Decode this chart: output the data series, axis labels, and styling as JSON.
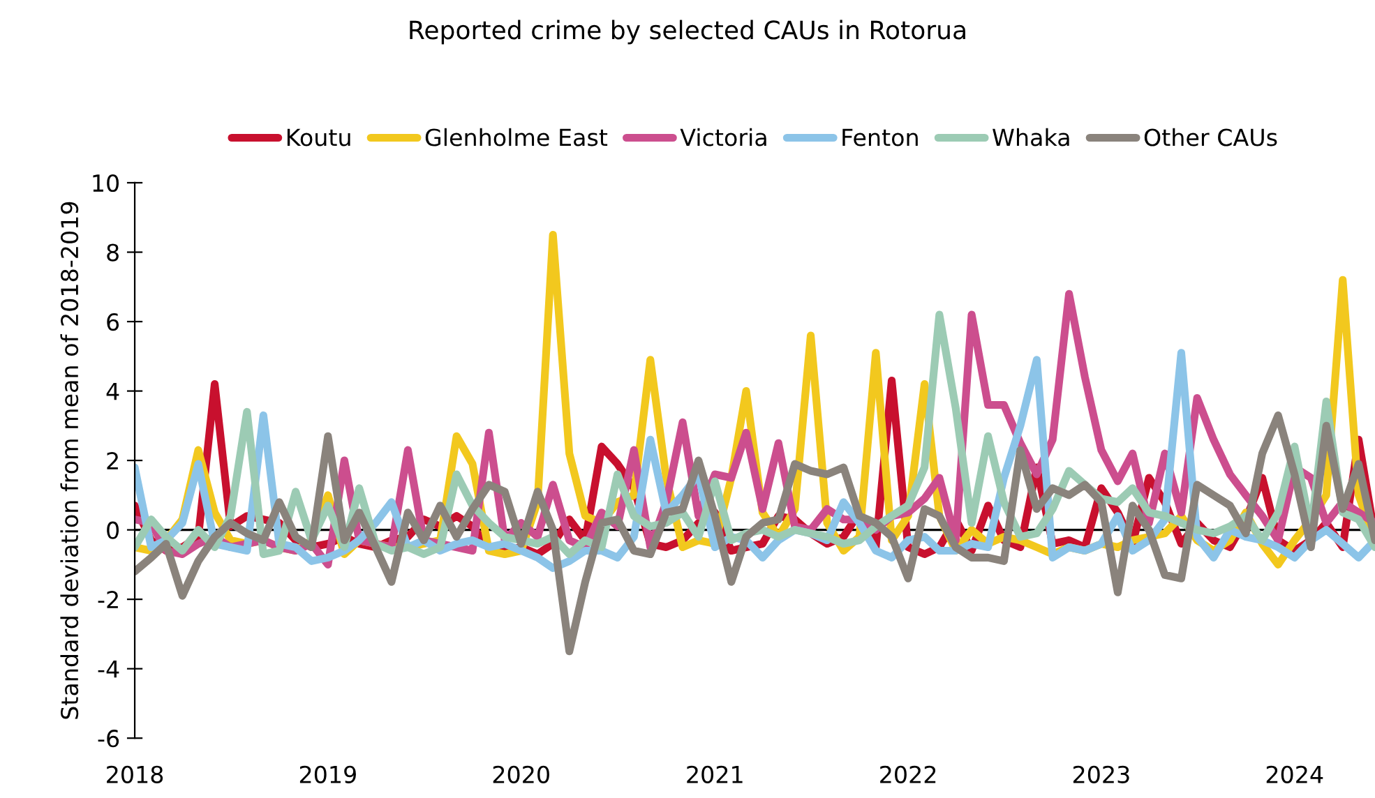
{
  "chart_data": {
    "type": "line",
    "title": "Reported crime by selected CAUs in Rotorua",
    "ylabel": "Standard deviation from mean of 2018-2019",
    "x": [
      "2018-01",
      "2018-02",
      "2018-03",
      "2018-04",
      "2018-05",
      "2018-06",
      "2018-07",
      "2018-08",
      "2018-09",
      "2018-10",
      "2018-11",
      "2018-12",
      "2019-01",
      "2019-02",
      "2019-03",
      "2019-04",
      "2019-05",
      "2019-06",
      "2019-07",
      "2019-08",
      "2019-09",
      "2019-10",
      "2019-11",
      "2019-12",
      "2020-01",
      "2020-02",
      "2020-03",
      "2020-04",
      "2020-05",
      "2020-06",
      "2020-07",
      "2020-08",
      "2020-09",
      "2020-10",
      "2020-11",
      "2020-12",
      "2021-01",
      "2021-02",
      "2021-03",
      "2021-04",
      "2021-05",
      "2021-06",
      "2021-07",
      "2021-08",
      "2021-09",
      "2021-10",
      "2021-11",
      "2021-12",
      "2022-01",
      "2022-02",
      "2022-03",
      "2022-04",
      "2022-05",
      "2022-06",
      "2022-07",
      "2022-08",
      "2022-09",
      "2022-10",
      "2022-11",
      "2022-12",
      "2023-01",
      "2023-02",
      "2023-03",
      "2023-04",
      "2023-05",
      "2023-06",
      "2023-07",
      "2023-08",
      "2023-09",
      "2023-10",
      "2023-11",
      "2023-12",
      "2024-01",
      "2024-02",
      "2024-03",
      "2024-04",
      "2024-05",
      "2024-06"
    ],
    "series": [
      {
        "name": "Koutu",
        "color": "#c8102e",
        "values": [
          0.7,
          -0.3,
          -0.6,
          -0.5,
          -0.2,
          4.2,
          0.1,
          0.4,
          0.3,
          0.2,
          -0.3,
          -0.5,
          -0.4,
          -0.2,
          -0.4,
          -0.5,
          -0.3,
          -0.2,
          0.3,
          0.1,
          0.4,
          0.1,
          -0.5,
          -0.6,
          -0.5,
          -0.7,
          -0.4,
          0.3,
          -0.3,
          2.4,
          1.9,
          1.2,
          -0.4,
          -0.5,
          -0.3,
          0.2,
          0.5,
          -0.6,
          -0.5,
          -0.4,
          0.4,
          0.3,
          -0.1,
          -0.4,
          -0.2,
          0.5,
          -0.5,
          4.3,
          -0.5,
          -0.7,
          -0.5,
          0.3,
          -0.6,
          0.7,
          -0.3,
          -0.5,
          1.8,
          -0.4,
          -0.3,
          -0.5,
          1.2,
          0.5,
          -0.4,
          1.5,
          0.8,
          -0.4,
          0.2,
          -0.3,
          -0.5,
          0.3,
          1.5,
          -0.3,
          -0.6,
          -0.3,
          0.2,
          -0.5,
          2.6,
          -0.2
        ]
      },
      {
        "name": "Glenholme East",
        "color": "#f2c81e",
        "values": [
          -0.5,
          -0.6,
          -0.3,
          0.3,
          2.3,
          0.5,
          -0.3,
          -0.4,
          -0.3,
          -0.5,
          -0.6,
          -0.3,
          1.0,
          -0.7,
          -0.3,
          -0.4,
          -0.5,
          -0.5,
          -0.4,
          -0.3,
          2.7,
          1.9,
          -0.6,
          -0.7,
          -0.6,
          0.8,
          8.5,
          2.2,
          0.4,
          0.2,
          0.8,
          1.0,
          4.9,
          1.5,
          -0.5,
          -0.3,
          -0.4,
          1.5,
          4.0,
          0.5,
          -0.2,
          0.6,
          5.6,
          0.2,
          -0.6,
          -0.2,
          5.1,
          -0.3,
          0.4,
          4.2,
          0.4,
          -0.6,
          0.0,
          -0.4,
          -0.2,
          -0.3,
          -0.5,
          -0.7,
          -0.5,
          -0.6,
          -0.4,
          -0.5,
          -0.3,
          -0.2,
          -0.1,
          0.4,
          -0.3,
          -0.6,
          -0.3,
          0.5,
          -0.4,
          -1.0,
          -0.3,
          0.3,
          1.0,
          7.2,
          1.0,
          -0.3
        ]
      },
      {
        "name": "Victoria",
        "color": "#cc4e8e",
        "values": [
          0.3,
          0.2,
          -0.6,
          -0.7,
          -0.4,
          -0.2,
          -0.5,
          -0.4,
          -0.3,
          -0.5,
          -0.6,
          -0.4,
          -1.0,
          2.0,
          -0.3,
          -0.4,
          -0.5,
          2.3,
          -0.3,
          -0.4,
          -0.5,
          -0.6,
          2.8,
          -0.3,
          0.2,
          -0.2,
          1.3,
          -0.3,
          -0.5,
          0.5,
          0.1,
          2.3,
          -0.5,
          0.8,
          3.1,
          0.4,
          1.6,
          1.5,
          2.8,
          0.6,
          2.5,
          0.1,
          0.0,
          0.6,
          0.3,
          0.3,
          0.0,
          0.4,
          0.5,
          0.9,
          1.5,
          -0.3,
          6.2,
          3.6,
          3.6,
          2.5,
          1.6,
          2.6,
          6.8,
          4.4,
          2.3,
          1.4,
          2.2,
          0.2,
          2.2,
          0.5,
          3.8,
          2.6,
          1.6,
          1.0,
          0.4,
          -0.3,
          1.8,
          1.5,
          0.2,
          0.8,
          0.5,
          0.2
        ]
      },
      {
        "name": "Fenton",
        "color": "#8cc4e8",
        "values": [
          1.8,
          -0.5,
          -0.3,
          0.2,
          1.9,
          -0.4,
          -0.5,
          -0.6,
          3.3,
          -0.4,
          -0.5,
          -0.9,
          -0.8,
          -0.6,
          -0.3,
          0.2,
          0.8,
          -0.5,
          -0.3,
          -0.6,
          -0.4,
          -0.3,
          -0.5,
          -0.4,
          -0.6,
          -0.8,
          -1.1,
          -0.9,
          -0.6,
          -0.6,
          -0.8,
          -0.2,
          2.6,
          0.5,
          1.0,
          1.6,
          -0.5,
          -0.2,
          -0.3,
          -0.8,
          -0.3,
          0.0,
          -0.1,
          -0.3,
          0.8,
          0.2,
          -0.6,
          -0.8,
          -0.3,
          -0.2,
          -0.6,
          -0.6,
          -0.4,
          -0.5,
          1.5,
          3.0,
          4.9,
          -0.8,
          -0.5,
          -0.6,
          -0.4,
          0.4,
          -0.6,
          -0.3,
          0.3,
          5.1,
          -0.2,
          -0.8,
          0.0,
          -0.2,
          -0.3,
          -0.5,
          -0.8,
          -0.3,
          0.0,
          -0.4,
          -0.8,
          -0.3
        ]
      },
      {
        "name": "Whaka",
        "color": "#9ccbb4",
        "values": [
          -0.5,
          0.3,
          -0.2,
          -0.6,
          0.0,
          -0.5,
          0.4,
          3.4,
          -0.7,
          -0.6,
          1.1,
          -0.3,
          0.7,
          -0.5,
          1.2,
          -0.4,
          -0.6,
          -0.5,
          -0.7,
          -0.5,
          1.6,
          0.7,
          0.2,
          -0.2,
          -0.3,
          -0.4,
          -0.2,
          -0.7,
          -0.3,
          -0.5,
          1.6,
          0.4,
          0.1,
          0.2,
          0.5,
          -0.2,
          1.4,
          -0.3,
          -0.1,
          0.0,
          -0.2,
          0.0,
          -0.1,
          -0.2,
          -0.4,
          -0.3,
          0.1,
          0.4,
          0.7,
          1.8,
          6.2,
          3.5,
          0.2,
          2.7,
          0.8,
          -0.2,
          -0.1,
          0.6,
          1.7,
          1.3,
          0.9,
          0.8,
          1.2,
          0.5,
          0.4,
          0.2,
          0.0,
          -0.1,
          0.1,
          0.4,
          -0.3,
          0.5,
          2.4,
          0.0,
          3.7,
          0.5,
          0.3,
          -0.5
        ]
      },
      {
        "name": "Other CAUs",
        "color": "#8a837c",
        "values": [
          -1.2,
          -0.8,
          -0.4,
          -1.9,
          -0.9,
          -0.2,
          0.2,
          -0.1,
          -0.3,
          0.8,
          -0.2,
          -0.5,
          2.7,
          -0.3,
          0.5,
          -0.5,
          -1.5,
          0.5,
          -0.3,
          0.7,
          -0.2,
          0.6,
          1.3,
          1.1,
          -0.4,
          1.1,
          0.0,
          -3.5,
          -1.5,
          0.2,
          0.3,
          -0.6,
          -0.7,
          0.5,
          0.6,
          2.0,
          0.4,
          -1.5,
          -0.2,
          0.2,
          0.3,
          1.9,
          1.7,
          1.6,
          1.8,
          0.4,
          0.2,
          -0.2,
          -1.4,
          0.6,
          0.4,
          -0.5,
          -0.8,
          -0.8,
          -0.9,
          2.3,
          0.6,
          1.2,
          1.0,
          1.3,
          0.8,
          -1.8,
          0.7,
          0.0,
          -1.3,
          -1.4,
          1.3,
          1.0,
          0.7,
          -0.1,
          2.2,
          3.3,
          1.6,
          -0.5,
          3.0,
          0.6,
          1.9,
          -0.3
        ]
      }
    ],
    "xlim": [
      "2018-01",
      "2024-06"
    ],
    "xticks": [
      "2018",
      "2019",
      "2020",
      "2021",
      "2022",
      "2023",
      "2024"
    ],
    "ylim": [
      -6,
      10
    ],
    "yticks": [
      -6,
      -4,
      -2,
      0,
      2,
      4,
      6,
      8,
      10
    ],
    "ref_lines": [
      {
        "axis": "y",
        "value": 0,
        "color": "#000000",
        "line_style": "solid"
      }
    ],
    "grid": false,
    "legend": "top",
    "marker": "none",
    "line_style": "solid"
  }
}
